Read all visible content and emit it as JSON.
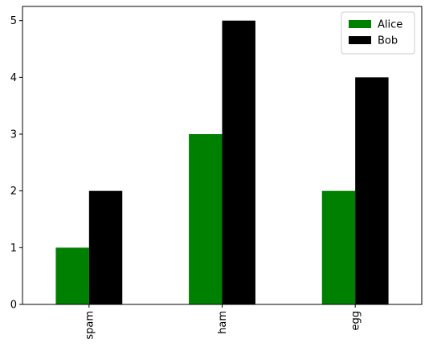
{
  "chart_data": {
    "type": "bar",
    "categories": [
      "spam",
      "ham",
      "egg"
    ],
    "series": [
      {
        "name": "Alice",
        "values": [
          1,
          3,
          2
        ],
        "color": "#008000"
      },
      {
        "name": "Bob",
        "values": [
          2,
          5,
          4
        ],
        "color": "#000000"
      }
    ],
    "title": "",
    "xlabel": "",
    "ylabel": "",
    "ylim": [
      0,
      5.25
    ],
    "yticks": [
      0,
      1,
      2,
      3,
      4,
      5
    ],
    "grid": false,
    "legend_position": "top-right",
    "x_tick_rotation": "vertical"
  }
}
